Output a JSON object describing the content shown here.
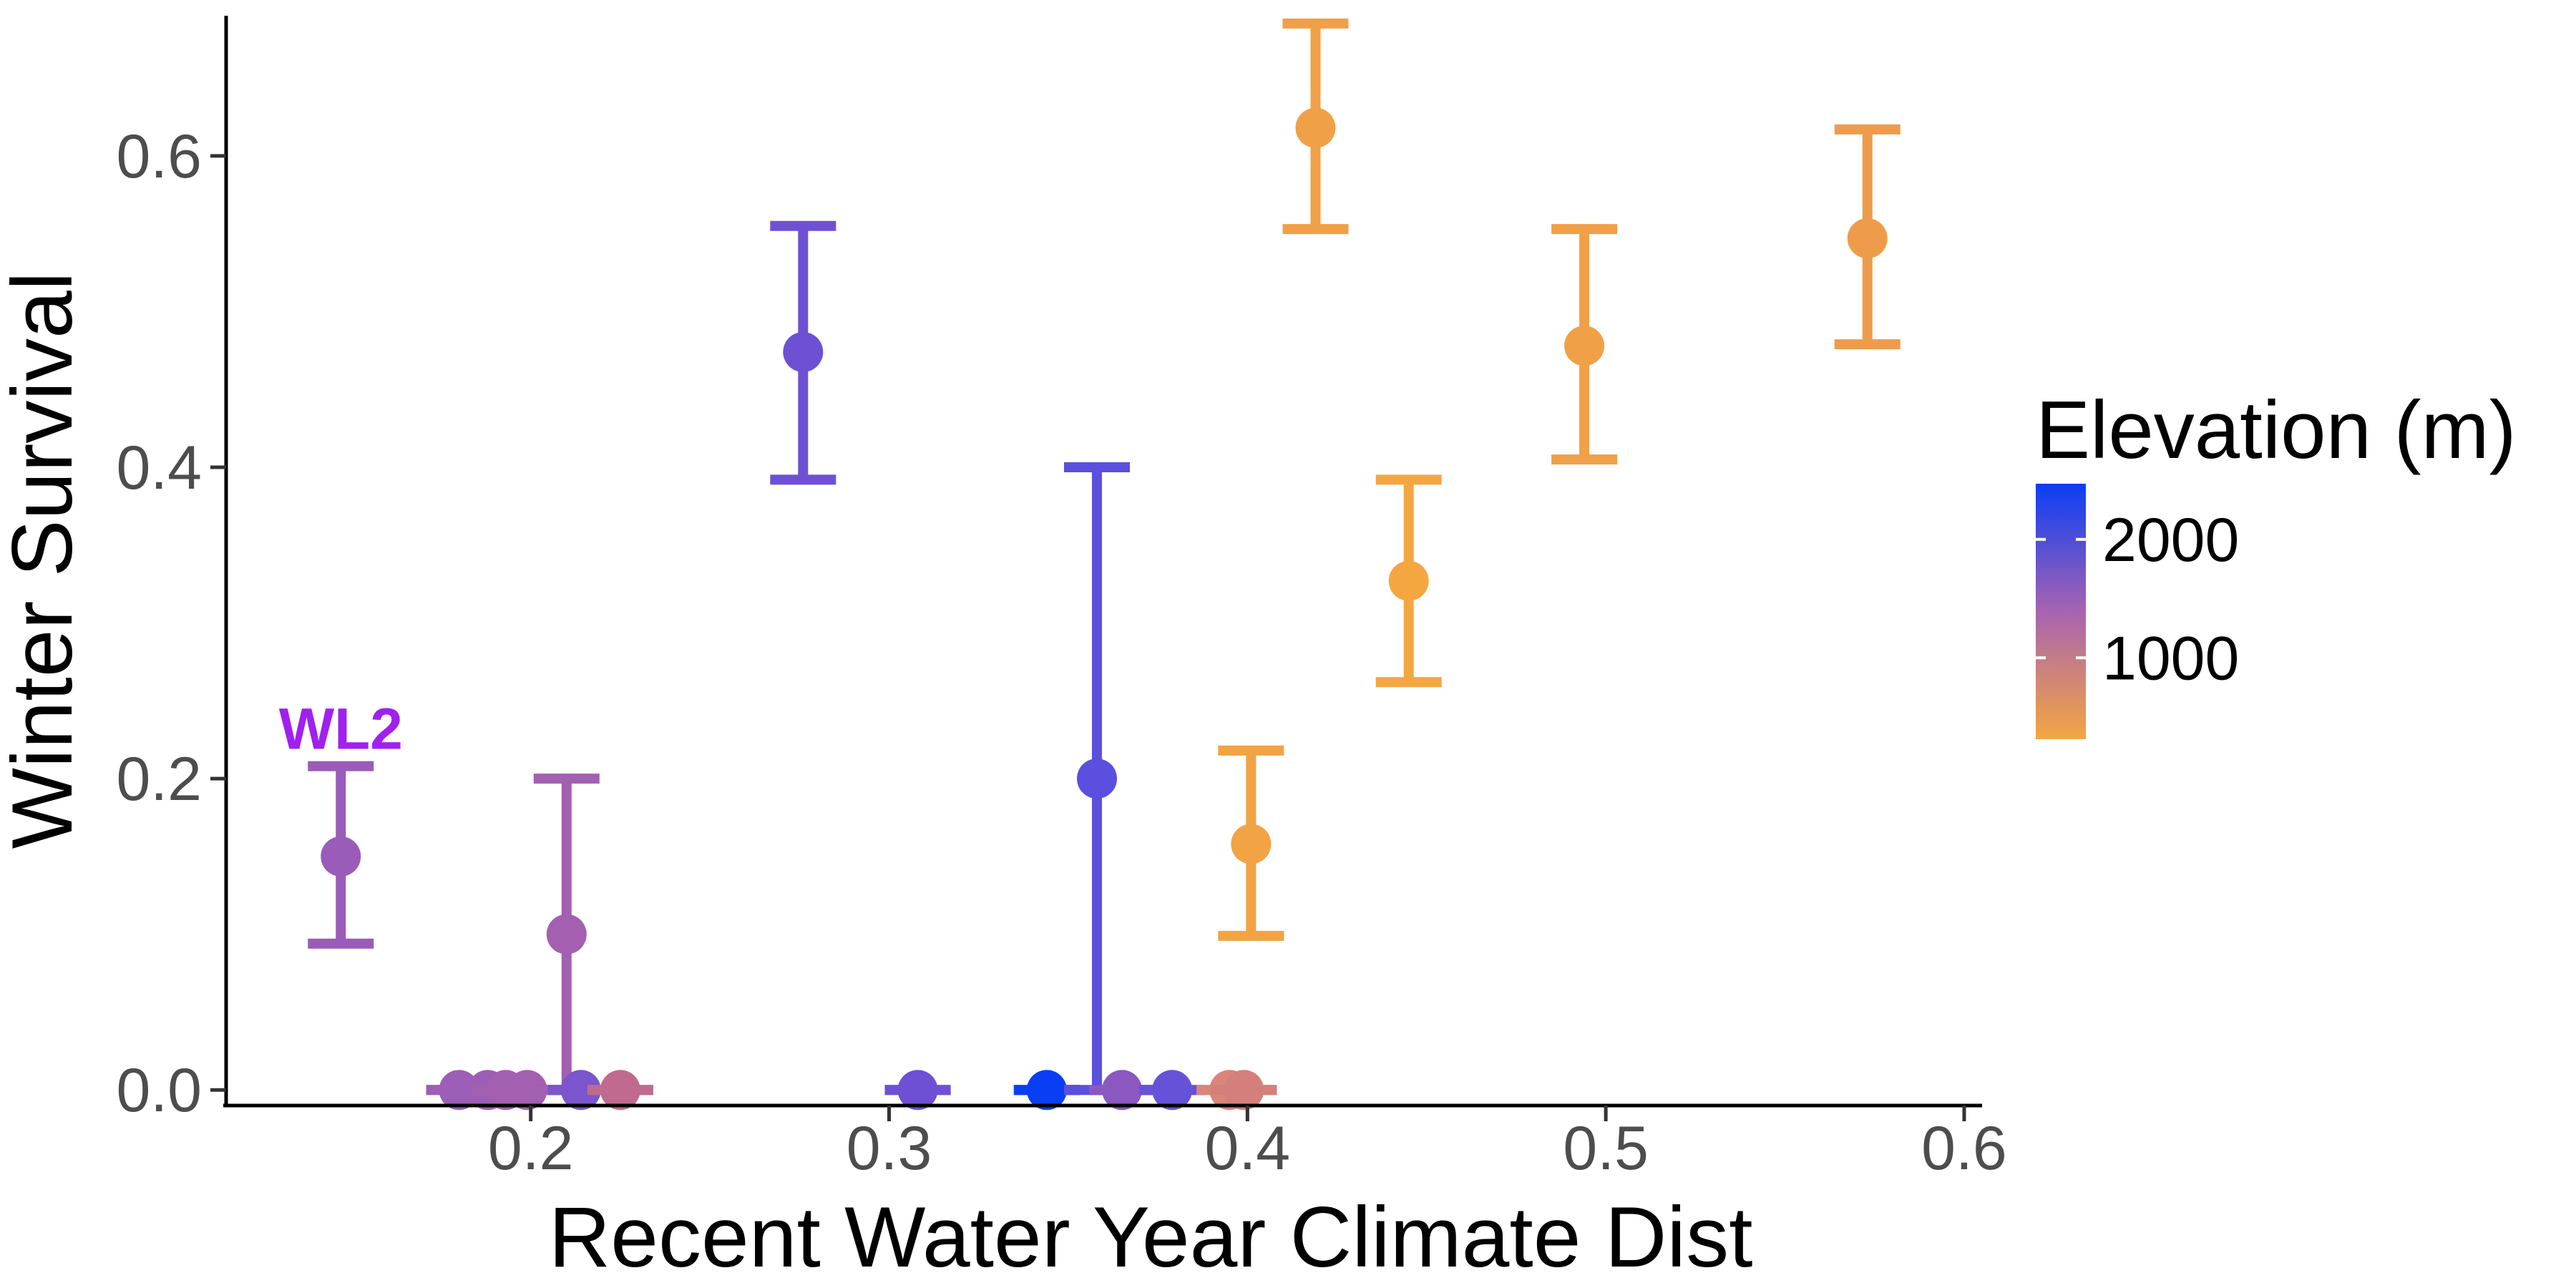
{
  "chart_data": {
    "type": "scatter",
    "xlabel": "Recent Water Year Climate Dist",
    "ylabel": "Winter Survival",
    "xlim": [
      0.115,
      0.605
    ],
    "ylim": [
      -0.01,
      0.69
    ],
    "x_ticks": [
      0.2,
      0.3,
      0.4,
      0.5,
      0.6
    ],
    "y_ticks": [
      0.0,
      0.2,
      0.4,
      0.6
    ],
    "x_tick_labels": [
      "0.2",
      "0.3",
      "0.4",
      "0.5",
      "0.6"
    ],
    "y_tick_labels": [
      "0.0",
      "0.2",
      "0.4",
      "0.6"
    ],
    "grid": false,
    "legend": {
      "title": "Elevation (m)",
      "placement": "right",
      "type": "colorbar",
      "range": [
        313,
        2470
      ],
      "ticks": [
        2000,
        1000
      ],
      "tick_labels": [
        "2000",
        "1000"
      ],
      "color_low": "#f4a641",
      "color_mid": "#a763b0",
      "color_high": "#0a3ef5"
    },
    "annotations": [
      {
        "text": "WL2",
        "x": 0.147,
        "y": 0.232,
        "color": "#a020f0"
      }
    ],
    "points": [
      {
        "x": 0.147,
        "y": 0.15,
        "lower": 0.094,
        "upper": 0.208,
        "elevation": 2020,
        "color": "#9a5cb8"
      },
      {
        "x": 0.18,
        "y": 0.0,
        "lower": 0.0,
        "upper": 0.0,
        "elevation": 2000,
        "color": "#9c5eb6"
      },
      {
        "x": 0.188,
        "y": 0.0,
        "lower": 0.0,
        "upper": 0.0,
        "elevation": 2000,
        "color": "#9c5eb6"
      },
      {
        "x": 0.193,
        "y": 0.0,
        "lower": 0.0,
        "upper": 0.0,
        "elevation": 1900,
        "color": "#a35fb0"
      },
      {
        "x": 0.199,
        "y": 0.0,
        "lower": 0.0,
        "upper": 0.0,
        "elevation": 1900,
        "color": "#a35fb0"
      },
      {
        "x": 0.21,
        "y": 0.1,
        "lower": 0.0,
        "upper": 0.2,
        "elevation": 1900,
        "color": "#a35fb0"
      },
      {
        "x": 0.214,
        "y": 0.0,
        "lower": 0.0,
        "upper": 0.0,
        "elevation": 2250,
        "color": "#7a55cc"
      },
      {
        "x": 0.225,
        "y": 0.0,
        "lower": 0.0,
        "upper": 0.0,
        "elevation": 1500,
        "color": "#bf6a8e"
      },
      {
        "x": 0.276,
        "y": 0.474,
        "lower": 0.392,
        "upper": 0.555,
        "elevation": 2300,
        "color": "#6e50d4"
      },
      {
        "x": 0.308,
        "y": 0.0,
        "lower": 0.0,
        "upper": 0.0,
        "elevation": 2300,
        "color": "#6e50d4"
      },
      {
        "x": 0.344,
        "y": 0.0,
        "lower": 0.0,
        "upper": 0.0,
        "elevation": 2470,
        "color": "#0a3ef5"
      },
      {
        "x": 0.358,
        "y": 0.2,
        "lower": 0.0,
        "upper": 0.4,
        "elevation": 2400,
        "color": "#5a4fdf"
      },
      {
        "x": 0.365,
        "y": 0.0,
        "lower": 0.0,
        "upper": 0.0,
        "elevation": 2100,
        "color": "#8a58c0"
      },
      {
        "x": 0.379,
        "y": 0.0,
        "lower": 0.0,
        "upper": 0.0,
        "elevation": 2350,
        "color": "#6652d9"
      },
      {
        "x": 0.395,
        "y": 0.0,
        "lower": 0.0,
        "upper": 0.0,
        "elevation": 900,
        "color": "#d98578"
      },
      {
        "x": 0.399,
        "y": 0.0,
        "lower": 0.0,
        "upper": 0.0,
        "elevation": 1000,
        "color": "#d47f7c"
      },
      {
        "x": 0.401,
        "y": 0.158,
        "lower": 0.099,
        "upper": 0.218,
        "elevation": 400,
        "color": "#f2a344"
      },
      {
        "x": 0.419,
        "y": 0.618,
        "lower": 0.553,
        "upper": 0.685,
        "elevation": 450,
        "color": "#f0a047"
      },
      {
        "x": 0.445,
        "y": 0.327,
        "lower": 0.262,
        "upper": 0.392,
        "elevation": 350,
        "color": "#f4a641"
      },
      {
        "x": 0.494,
        "y": 0.478,
        "lower": 0.405,
        "upper": 0.553,
        "elevation": 450,
        "color": "#f0a047"
      },
      {
        "x": 0.573,
        "y": 0.547,
        "lower": 0.479,
        "upper": 0.617,
        "elevation": 550,
        "color": "#ee9c4b"
      }
    ]
  }
}
